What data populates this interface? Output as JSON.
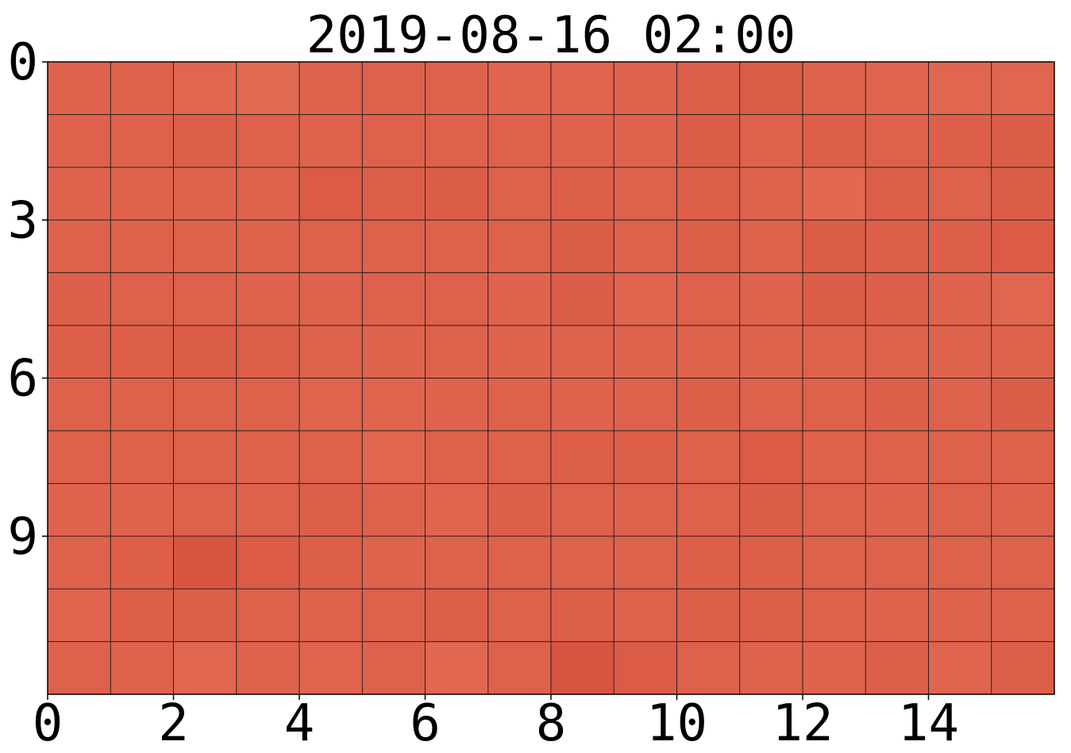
{
  "chart_data": {
    "type": "heatmap",
    "title": "2019-08-16 02:00",
    "xlabel": "",
    "ylabel": "",
    "x_range": [
      0,
      16
    ],
    "y_range": [
      0,
      12
    ],
    "y_inverted": true,
    "x_ticks": [
      "0",
      "2",
      "4",
      "6",
      "8",
      "10",
      "12",
      "14"
    ],
    "y_ticks": [
      "0",
      "3",
      "6",
      "9"
    ],
    "grid": true,
    "colors": {
      "low": "#e8735a",
      "high": "#d44e3b",
      "grid_line": "#222222",
      "axis": "#000000"
    },
    "rows": 12,
    "cols": 16,
    "values": [
      [
        0.45,
        0.45,
        0.35,
        0.25,
        0.45,
        0.5,
        0.45,
        0.4,
        0.4,
        0.45,
        0.55,
        0.6,
        0.45,
        0.4,
        0.35,
        0.35
      ],
      [
        0.5,
        0.5,
        0.55,
        0.5,
        0.45,
        0.5,
        0.5,
        0.5,
        0.45,
        0.45,
        0.6,
        0.45,
        0.55,
        0.5,
        0.55,
        0.6
      ],
      [
        0.45,
        0.45,
        0.45,
        0.45,
        0.65,
        0.55,
        0.6,
        0.5,
        0.55,
        0.5,
        0.55,
        0.45,
        0.3,
        0.55,
        0.5,
        0.6
      ],
      [
        0.5,
        0.5,
        0.45,
        0.45,
        0.5,
        0.5,
        0.5,
        0.5,
        0.6,
        0.5,
        0.55,
        0.5,
        0.6,
        0.55,
        0.55,
        0.65
      ],
      [
        0.55,
        0.5,
        0.5,
        0.45,
        0.45,
        0.5,
        0.5,
        0.45,
        0.6,
        0.4,
        0.5,
        0.45,
        0.6,
        0.55,
        0.45,
        0.35
      ],
      [
        0.55,
        0.55,
        0.6,
        0.55,
        0.45,
        0.45,
        0.5,
        0.45,
        0.5,
        0.45,
        0.5,
        0.45,
        0.5,
        0.5,
        0.45,
        0.45
      ],
      [
        0.5,
        0.5,
        0.5,
        0.5,
        0.4,
        0.4,
        0.45,
        0.5,
        0.45,
        0.5,
        0.55,
        0.5,
        0.5,
        0.55,
        0.5,
        0.6
      ],
      [
        0.5,
        0.5,
        0.5,
        0.45,
        0.5,
        0.35,
        0.5,
        0.5,
        0.55,
        0.55,
        0.5,
        0.65,
        0.5,
        0.5,
        0.5,
        0.5
      ],
      [
        0.45,
        0.45,
        0.5,
        0.5,
        0.55,
        0.5,
        0.4,
        0.55,
        0.5,
        0.5,
        0.5,
        0.6,
        0.5,
        0.45,
        0.5,
        0.45
      ],
      [
        0.5,
        0.55,
        0.8,
        0.65,
        0.55,
        0.45,
        0.5,
        0.5,
        0.5,
        0.5,
        0.55,
        0.55,
        0.5,
        0.5,
        0.5,
        0.5
      ],
      [
        0.4,
        0.55,
        0.55,
        0.5,
        0.45,
        0.5,
        0.55,
        0.5,
        0.55,
        0.5,
        0.55,
        0.55,
        0.5,
        0.45,
        0.45,
        0.45
      ],
      [
        0.5,
        0.45,
        0.35,
        0.45,
        0.4,
        0.5,
        0.3,
        0.5,
        0.85,
        0.65,
        0.5,
        0.45,
        0.45,
        0.55,
        0.4,
        0.55
      ]
    ]
  }
}
